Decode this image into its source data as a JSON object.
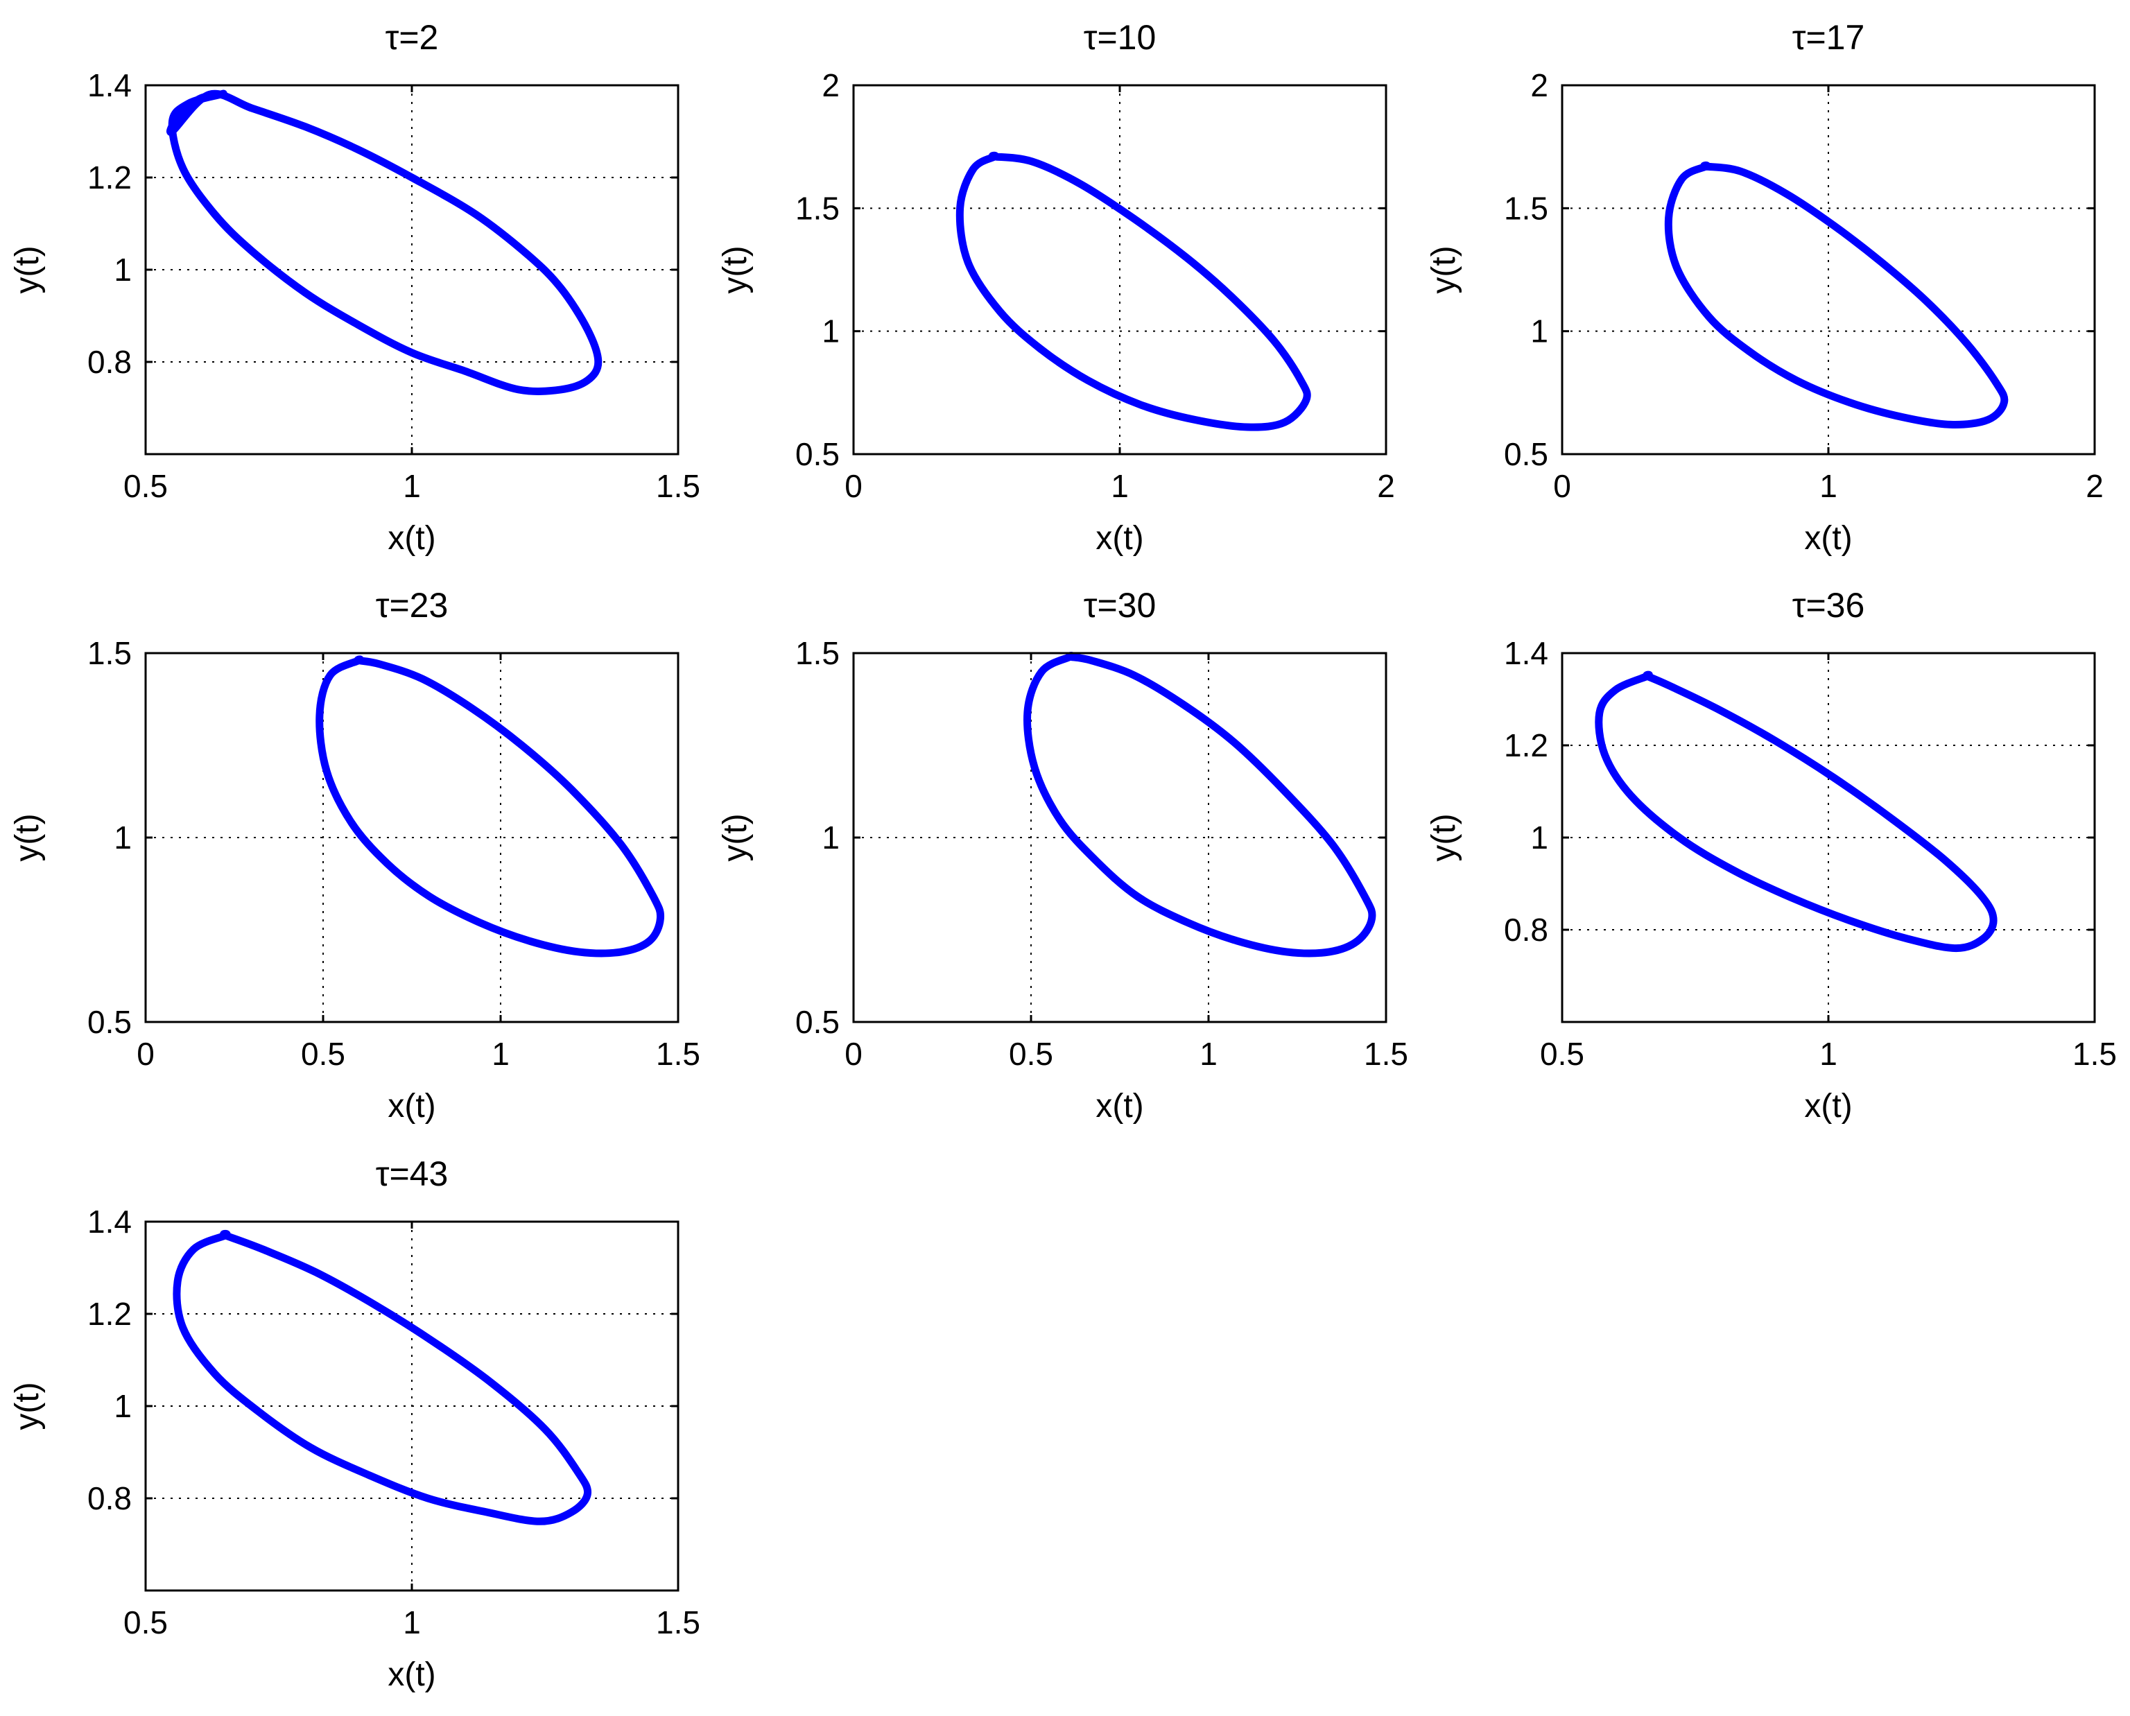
{
  "colors": {
    "curve": "#0000ff",
    "axes": "#000000",
    "grid": "#000000",
    "background": "#ffffff"
  },
  "chart_data": [
    {
      "type": "line",
      "title": "τ=2",
      "xlabel": "x(t)",
      "ylabel": "y(t)",
      "xlim": [
        0.5,
        1.5
      ],
      "ylim": [
        0.6,
        1.4
      ],
      "xticks": [
        0.5,
        1,
        1.5
      ],
      "xtick_labels": [
        "0.5",
        "1",
        "1.5"
      ],
      "yticks": [
        0.8,
        1,
        1.2,
        1.4
      ],
      "ytick_labels": [
        "0.8",
        "1",
        "1.2",
        "1.4"
      ],
      "grid": "dotted",
      "series": [
        {
          "x": [
            0.64,
            0.58,
            0.55,
            0.57,
            0.63,
            0.7,
            0.8,
            0.9,
            1.0,
            1.1,
            1.2,
            1.28,
            1.33,
            1.35,
            1.33,
            1.28,
            1.22,
            1.12,
            1.0,
            0.9,
            0.8,
            0.7,
            0.62,
            0.55,
            0.56,
            0.6,
            0.64
          ],
          "y": [
            1.38,
            1.36,
            1.32,
            1.22,
            1.12,
            1.04,
            0.95,
            0.88,
            0.82,
            0.78,
            0.74,
            0.74,
            0.76,
            0.8,
            0.87,
            0.96,
            1.03,
            1.12,
            1.2,
            1.26,
            1.31,
            1.35,
            1.38,
            1.3,
            1.33,
            1.37,
            1.38
          ]
        }
      ]
    },
    {
      "type": "line",
      "title": "τ=10",
      "xlabel": "x(t)",
      "ylabel": "y(t)",
      "xlim": [
        0,
        2
      ],
      "ylim": [
        0.5,
        2
      ],
      "xticks": [
        0,
        1,
        2
      ],
      "xtick_labels": [
        "0",
        "1",
        "2"
      ],
      "yticks": [
        0.5,
        1,
        1.5,
        2
      ],
      "ytick_labels": [
        "0.5",
        "1",
        "1.5",
        "2"
      ],
      "grid": "dotted",
      "series": [
        {
          "x": [
            0.53,
            0.45,
            0.4,
            0.43,
            0.55,
            0.7,
            0.88,
            1.08,
            1.28,
            1.48,
            1.62,
            1.7,
            1.68,
            1.58,
            1.42,
            1.25,
            1.05,
            0.85,
            0.67,
            0.53
          ],
          "y": [
            1.71,
            1.66,
            1.5,
            1.28,
            1.08,
            0.93,
            0.8,
            0.7,
            0.64,
            0.61,
            0.63,
            0.72,
            0.8,
            0.96,
            1.14,
            1.3,
            1.46,
            1.6,
            1.69,
            1.71
          ]
        }
      ]
    },
    {
      "type": "line",
      "title": "τ=17",
      "xlabel": "x(t)",
      "ylabel": "y(t)",
      "xlim": [
        0,
        2
      ],
      "ylim": [
        0.5,
        2
      ],
      "xticks": [
        0,
        1,
        2
      ],
      "xtick_labels": [
        "0",
        "1",
        "2"
      ],
      "yticks": [
        0.5,
        1,
        1.5,
        2
      ],
      "ytick_labels": [
        "0.5",
        "1",
        "1.5",
        "2"
      ],
      "grid": "dotted",
      "series": [
        {
          "x": [
            0.54,
            0.45,
            0.4,
            0.43,
            0.55,
            0.7,
            0.88,
            1.08,
            1.28,
            1.46,
            1.6,
            1.66,
            1.63,
            1.52,
            1.37,
            1.2,
            1.02,
            0.84,
            0.67,
            0.54
          ],
          "y": [
            1.67,
            1.62,
            1.46,
            1.26,
            1.06,
            0.92,
            0.8,
            0.71,
            0.65,
            0.62,
            0.64,
            0.71,
            0.79,
            0.95,
            1.12,
            1.28,
            1.43,
            1.56,
            1.65,
            1.67
          ]
        }
      ]
    },
    {
      "type": "line",
      "title": "τ=23",
      "xlabel": "x(t)",
      "ylabel": "y(t)",
      "xlim": [
        0,
        1.5
      ],
      "ylim": [
        0.5,
        1.5
      ],
      "xticks": [
        0,
        0.5,
        1,
        1.5
      ],
      "xtick_labels": [
        "0",
        "0.5",
        "1",
        "1.5"
      ],
      "yticks": [
        0.5,
        1,
        1.5
      ],
      "ytick_labels": [
        "0.5",
        "1",
        "1.5"
      ],
      "grid": "dotted",
      "series": [
        {
          "x": [
            0.6,
            0.52,
            0.49,
            0.51,
            0.58,
            0.68,
            0.8,
            0.94,
            1.08,
            1.22,
            1.34,
            1.42,
            1.45,
            1.43,
            1.34,
            1.2,
            1.06,
            0.92,
            0.78,
            0.66,
            0.6
          ],
          "y": [
            1.48,
            1.44,
            1.33,
            1.18,
            1.04,
            0.93,
            0.84,
            0.77,
            0.72,
            0.69,
            0.69,
            0.72,
            0.78,
            0.84,
            0.98,
            1.13,
            1.25,
            1.35,
            1.43,
            1.47,
            1.48
          ]
        }
      ]
    },
    {
      "type": "line",
      "title": "τ=30",
      "xlabel": "x(t)",
      "ylabel": "y(t)",
      "xlim": [
        0,
        1.5
      ],
      "ylim": [
        0.5,
        1.5
      ],
      "xticks": [
        0,
        0.5,
        1,
        1.5
      ],
      "xtick_labels": [
        "0",
        "0.5",
        "1",
        "1.5"
      ],
      "yticks": [
        0.5,
        1,
        1.5
      ],
      "ytick_labels": [
        "0.5",
        "1",
        "1.5"
      ],
      "grid": "dotted",
      "series": [
        {
          "x": [
            0.61,
            0.53,
            0.49,
            0.51,
            0.58,
            0.68,
            0.8,
            0.94,
            1.08,
            1.22,
            1.34,
            1.42,
            1.46,
            1.44,
            1.35,
            1.21,
            1.07,
            0.93,
            0.79,
            0.67,
            0.61
          ],
          "y": [
            1.49,
            1.45,
            1.34,
            1.19,
            1.05,
            0.94,
            0.84,
            0.77,
            0.72,
            0.69,
            0.69,
            0.72,
            0.78,
            0.84,
            0.98,
            1.13,
            1.26,
            1.36,
            1.44,
            1.48,
            1.49
          ]
        }
      ]
    },
    {
      "type": "line",
      "title": "τ=36",
      "xlabel": "x(t)",
      "ylabel": "y(t)",
      "xlim": [
        0.5,
        1.5
      ],
      "ylim": [
        0.6,
        1.4
      ],
      "xticks": [
        0.5,
        1,
        1.5
      ],
      "xtick_labels": [
        "0.5",
        "1",
        "1.5"
      ],
      "yticks": [
        0.8,
        1,
        1.2,
        1.4
      ],
      "ytick_labels": [
        "0.8",
        "1",
        "1.2",
        "1.4"
      ],
      "grid": "dotted",
      "series": [
        {
          "x": [
            0.66,
            0.6,
            0.57,
            0.58,
            0.63,
            0.72,
            0.82,
            0.93,
            1.04,
            1.15,
            1.24,
            1.29,
            1.31,
            1.29,
            1.22,
            1.12,
            1.01,
            0.9,
            0.79,
            0.7,
            0.66
          ],
          "y": [
            1.35,
            1.32,
            1.27,
            1.18,
            1.09,
            1.0,
            0.93,
            0.87,
            0.82,
            0.78,
            0.76,
            0.78,
            0.82,
            0.87,
            0.95,
            1.04,
            1.13,
            1.21,
            1.28,
            1.33,
            1.35
          ]
        }
      ]
    },
    {
      "type": "line",
      "title": "τ=43",
      "xlabel": "x(t)",
      "ylabel": "y(t)",
      "xlim": [
        0.5,
        1.5
      ],
      "ylim": [
        0.6,
        1.4
      ],
      "xticks": [
        0.5,
        1,
        1.5
      ],
      "xtick_labels": [
        "0.5",
        "1",
        "1.5"
      ],
      "yticks": [
        0.8,
        1,
        1.2,
        1.4
      ],
      "ytick_labels": [
        "0.8",
        "1",
        "1.2",
        "1.4"
      ],
      "grid": "dotted",
      "series": [
        {
          "x": [
            0.65,
            0.59,
            0.56,
            0.57,
            0.63,
            0.71,
            0.81,
            0.92,
            1.03,
            1.14,
            1.24,
            1.3,
            1.33,
            1.31,
            1.25,
            1.15,
            1.04,
            0.93,
            0.82,
            0.72,
            0.65
          ],
          "y": [
            1.37,
            1.34,
            1.27,
            1.17,
            1.07,
            0.99,
            0.91,
            0.85,
            0.8,
            0.77,
            0.75,
            0.77,
            0.81,
            0.86,
            0.95,
            1.05,
            1.14,
            1.22,
            1.29,
            1.34,
            1.37
          ]
        }
      ]
    }
  ]
}
